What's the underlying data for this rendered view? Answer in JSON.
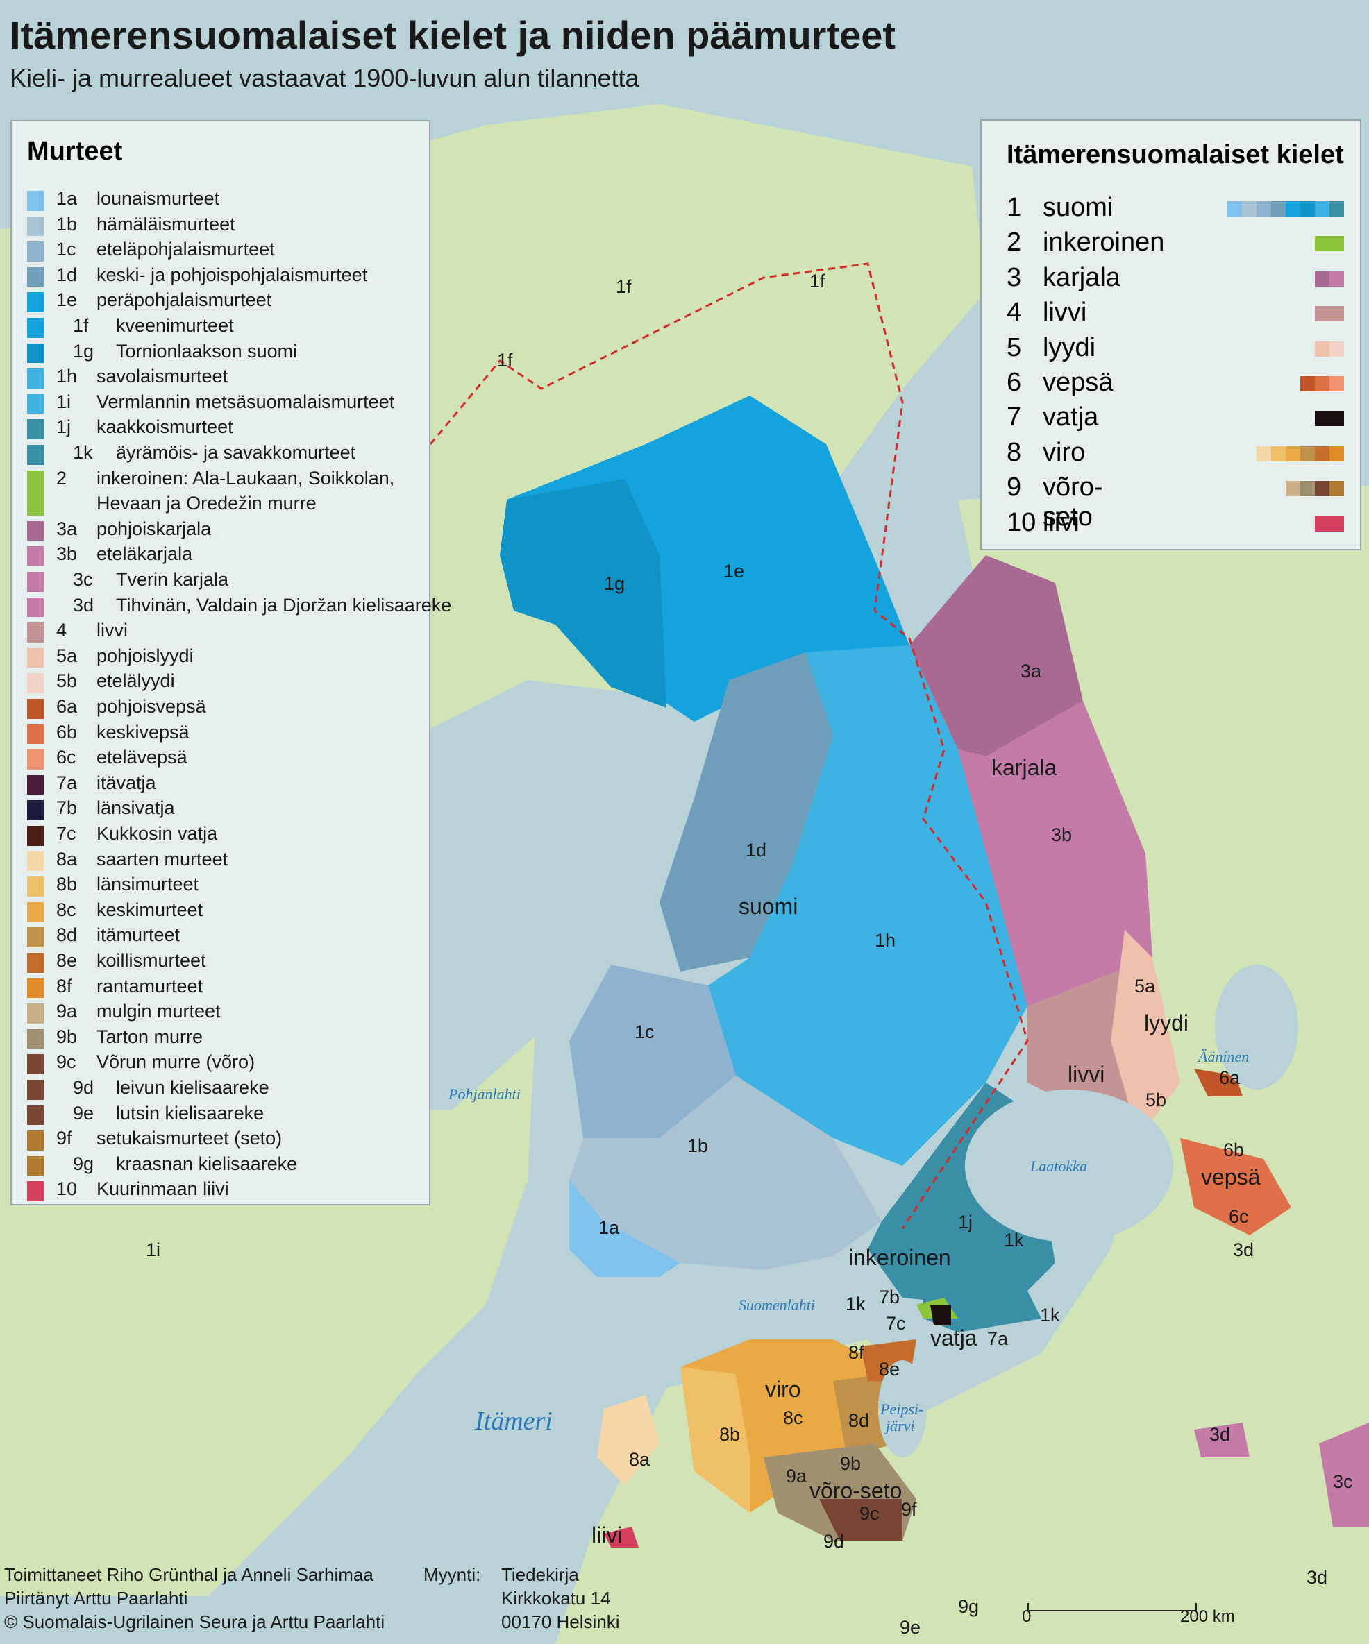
{
  "title": "Itämerensuomalaiset kielet ja niiden päämurteet",
  "subtitle": "Kieli- ja murrealueet vastaavat 1900-luvun alun tilannetta",
  "dialect_legend": {
    "heading": "Murteet",
    "items": [
      {
        "code": "1a",
        "name": "lounaismurteet",
        "color": "#7fc3ec",
        "sub": false
      },
      {
        "code": "1b",
        "name": "hämäläismurteet",
        "color": "#a9c2d4",
        "sub": false
      },
      {
        "code": "1c",
        "name": "eteläpohjalaismurteet",
        "color": "#8fb3cf",
        "sub": false
      },
      {
        "code": "1d",
        "name": "keski- ja pohjoispohjalaismurteet",
        "color": "#6f9ebb",
        "sub": false
      },
      {
        "code": "1e",
        "name": "peräpohjalaismurteet",
        "color": "#14a3dc",
        "sub": false
      },
      {
        "code": "1f",
        "name": "kveenimurteet",
        "color": "#14a3dc",
        "sub": true
      },
      {
        "code": "1g",
        "name": "Tornionlaakson suomi",
        "color": "#1094c8",
        "sub": true
      },
      {
        "code": "1h",
        "name": "savolaismurteet",
        "color": "#3eb2e2",
        "sub": false
      },
      {
        "code": "1i",
        "name": "Vermlannin metsäsuomalaismurteet",
        "color": "#3eb2e2",
        "sub": false
      },
      {
        "code": "1j",
        "name": "kaakkoismurteet",
        "color": "#3a8ea6",
        "sub": false
      },
      {
        "code": "1k",
        "name": "äyrämöis- ja savakkomurteet",
        "color": "#3a8ea6",
        "sub": true
      },
      {
        "code": "2",
        "name": "inkeroinen: Ala-Laukaan, Soikkolan,",
        "name2": "Hevaan ja Oredežin murre",
        "color": "#8cc43c",
        "sub": false
      },
      {
        "code": "3a",
        "name": "pohjoiskarjala",
        "color": "#a86a92",
        "sub": false
      },
      {
        "code": "3b",
        "name": "eteläkarjala",
        "color": "#c47ba8",
        "sub": false
      },
      {
        "code": "3c",
        "name": "Tverin karjala",
        "color": "#c47ba8",
        "sub": true
      },
      {
        "code": "3d",
        "name": "Tihvinän, Valdain ja Djoržan kielisaareke",
        "color": "#c47ba8",
        "sub": true
      },
      {
        "code": "4",
        "name": "livvi",
        "color": "#c49394",
        "sub": false
      },
      {
        "code": "5a",
        "name": "pohjoislyydi",
        "color": "#efc0ac",
        "sub": false
      },
      {
        "code": "5b",
        "name": "etelälyydi",
        "color": "#f2d1c6",
        "sub": false
      },
      {
        "code": "6a",
        "name": "pohjoisvepsä",
        "color": "#c0552a",
        "sub": false
      },
      {
        "code": "6b",
        "name": "keskivepsä",
        "color": "#e0704a",
        "sub": false
      },
      {
        "code": "6c",
        "name": "etelävepsä",
        "color": "#ee9270",
        "sub": false
      },
      {
        "code": "7a",
        "name": "itävatja",
        "color": "#4a1a3a",
        "sub": false
      },
      {
        "code": "7b",
        "name": "länsivatja",
        "color": "#1c1c40",
        "sub": false
      },
      {
        "code": "7c",
        "name": "Kukkosin vatja",
        "color": "#4a1e14",
        "sub": false
      },
      {
        "code": "8a",
        "name": "saarten murteet",
        "color": "#f6d7a8",
        "sub": false
      },
      {
        "code": "8b",
        "name": "länsimurteet",
        "color": "#efc067",
        "sub": false
      },
      {
        "code": "8c",
        "name": "keskimurteet",
        "color": "#e9aa45",
        "sub": false
      },
      {
        "code": "8d",
        "name": "itämurteet",
        "color": "#c0914a",
        "sub": false
      },
      {
        "code": "8e",
        "name": "koillismurteet",
        "color": "#c46c2c",
        "sub": false
      },
      {
        "code": "8f",
        "name": "rantamurteet",
        "color": "#e08b28",
        "sub": false
      },
      {
        "code": "9a",
        "name": "mulgin murteet",
        "color": "#c9ae86",
        "sub": false
      },
      {
        "code": "9b",
        "name": "Tarton murre",
        "color": "#a09070",
        "sub": false
      },
      {
        "code": "9c",
        "name": "Võrun murre (võro)",
        "color": "#7a4634",
        "sub": false
      },
      {
        "code": "9d",
        "name": "leivun kielisaareke",
        "color": "#7a4634",
        "sub": true
      },
      {
        "code": "9e",
        "name": "lutsin kielisaareke",
        "color": "#7a4634",
        "sub": true
      },
      {
        "code": "9f",
        "name": "setukaismurteet (seto)",
        "color": "#b07a30",
        "sub": false
      },
      {
        "code": "9g",
        "name": "kraasnan kielisaareke",
        "color": "#b07a30",
        "sub": true
      },
      {
        "code": "10",
        "name": "Kuurinmaan liivi",
        "color": "#d64060",
        "sub": false
      }
    ]
  },
  "language_legend": {
    "heading": "Itämerensuomalaiset kielet",
    "items": [
      {
        "num": "1",
        "name": "suomi",
        "colors": [
          "#7fc3ec",
          "#a9c2d4",
          "#8fb3cf",
          "#6f9ebb",
          "#14a3dc",
          "#1094c8",
          "#3eb2e2",
          "#3a8ea6"
        ]
      },
      {
        "num": "2",
        "name": "inkeroinen",
        "colors": [
          "#8cc43c",
          "#8cc43c"
        ]
      },
      {
        "num": "3",
        "name": "karjala",
        "colors": [
          "#a86a92",
          "#c47ba8"
        ]
      },
      {
        "num": "4",
        "name": "livvi",
        "colors": [
          "#c49394",
          "#c49394"
        ]
      },
      {
        "num": "5",
        "name": "lyydi",
        "colors": [
          "#efc0ac",
          "#f2d1c6"
        ]
      },
      {
        "num": "6",
        "name": "vepsä",
        "colors": [
          "#c0552a",
          "#e0704a",
          "#ee9270"
        ]
      },
      {
        "num": "7",
        "name": "vatja",
        "colors": [
          "#1c1010",
          "#1c1010"
        ]
      },
      {
        "num": "8",
        "name": "viro",
        "colors": [
          "#f6d7a8",
          "#efc067",
          "#e9aa45",
          "#c0914a",
          "#c46c2c",
          "#e08b28"
        ]
      },
      {
        "num": "9",
        "name": "võro-seto",
        "colors": [
          "#c9ae86",
          "#a09070",
          "#7a4634",
          "#b07a30"
        ]
      },
      {
        "num": "10",
        "name": "liivi",
        "colors": [
          "#d64060",
          "#d64060"
        ]
      }
    ]
  },
  "map_labels": {
    "l_1f_a": "1f",
    "l_1f_b": "1f",
    "l_1f_c": "1f",
    "l_1g": "1g",
    "l_1e": "1e",
    "l_3a": "3a",
    "l_karjala": "karjala",
    "l_3b": "3b",
    "l_1d": "1d",
    "l_suomi": "suomi",
    "l_1h": "1h",
    "l_1c": "1c",
    "l_1b": "1b",
    "l_1a": "1a",
    "l_1i": "1i",
    "l_1j": "1j",
    "l_1k_a": "1k",
    "l_1k_b": "1k",
    "l_1k_c": "1k",
    "l_5a": "5a",
    "l_lyydi": "lyydi",
    "l_livvi": "livvi",
    "l_5b": "5b",
    "l_6a": "6a",
    "l_6b": "6b",
    "l_vepsa": "vepsä",
    "l_6c": "6c",
    "l_3d_a": "3d",
    "l_3d_b": "3d",
    "l_3d_c": "3d",
    "l_3c": "3c",
    "l_inkeroinen": "inkeroinen",
    "l_7b": "7b",
    "l_7c": "7c",
    "l_vatja": "vatja",
    "l_7a": "7a",
    "l_8f": "8f",
    "l_8e": "8e",
    "l_viro": "viro",
    "l_8b": "8b",
    "l_8c": "8c",
    "l_8d": "8d",
    "l_8a": "8a",
    "l_9a": "9a",
    "l_9b": "9b",
    "l_voroseto": "võro-seto",
    "l_9c": "9c",
    "l_9f": "9f",
    "l_9d": "9d",
    "l_9g": "9g",
    "l_9e": "9e",
    "l_liivi": "liivi"
  },
  "water_labels": {
    "pohjanlahti": "Pohjanlahti",
    "laatokka": "Laatokka",
    "aaninen": "Äänínen",
    "suomenlahti": "Suomenlahti",
    "itameri": "Itämeri",
    "peipsi": "Peipsi-",
    "jarvi": "järvi"
  },
  "credits": {
    "line1": "Toimittaneet Riho Grünthal ja Anneli Sarhimaa",
    "line2": "Piirtänyt Arttu Paarlahti",
    "line3": "© Suomalais-Ugrilainen Seura ja Arttu Paarlahti",
    "sales_label": "Myynti:",
    "sales1": "Tiedekirja",
    "sales2": "Kirkkokatu 14",
    "sales3": "00170 Helsinki"
  },
  "scale": {
    "zero": "0",
    "end": "200 km"
  },
  "colors": {
    "sea": "#b9d2d8",
    "land": "#cfe3b4",
    "border": "#d42b2b"
  }
}
